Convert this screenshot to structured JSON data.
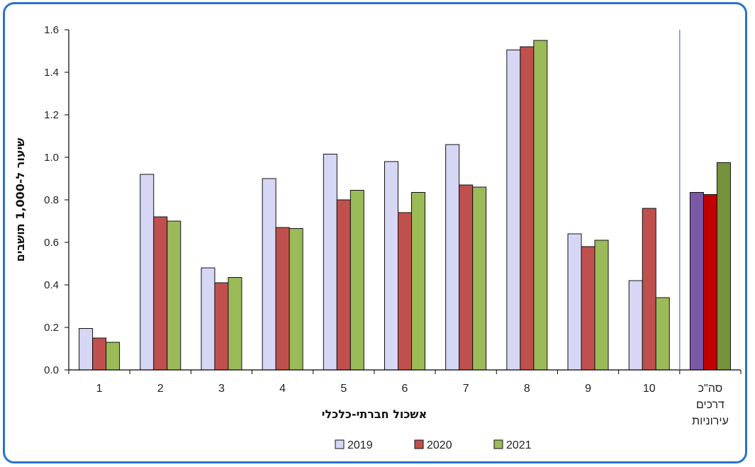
{
  "chart_data": {
    "type": "bar",
    "ylabel": "שיעור ל-1,000 תושבים",
    "xlabel": "אשכול חברתי-כלכלי",
    "ylim": [
      0,
      1.6
    ],
    "yticks": [
      "0.0",
      "0.2",
      "0.4",
      "0.6",
      "0.8",
      "1.0",
      "1.2",
      "1.4",
      "1.6"
    ],
    "categories": [
      "1",
      "2",
      "3",
      "4",
      "5",
      "6",
      "7",
      "8",
      "9",
      "10"
    ],
    "total_category": [
      "סה\"כ",
      "דרכים",
      "עירוניות"
    ],
    "series": [
      {
        "name": "2019",
        "color": "#d6d6f5",
        "total_color": "#7a5aa6",
        "values": [
          0.195,
          0.92,
          0.48,
          0.9,
          1.015,
          0.98,
          1.06,
          1.505,
          0.64,
          0.42
        ],
        "total": 0.835
      },
      {
        "name": "2020",
        "color": "#c0504d",
        "total_color": "#c00000",
        "values": [
          0.15,
          0.72,
          0.41,
          0.67,
          0.8,
          0.74,
          0.87,
          1.52,
          0.58,
          0.76
        ],
        "total": 0.825
      },
      {
        "name": "2021",
        "color": "#9bbb59",
        "total_color": "#76923c",
        "values": [
          0.13,
          0.7,
          0.435,
          0.665,
          0.845,
          0.835,
          0.86,
          1.55,
          0.61,
          0.34
        ],
        "total": 0.975
      }
    ],
    "grid": false,
    "legend": "bottom"
  }
}
